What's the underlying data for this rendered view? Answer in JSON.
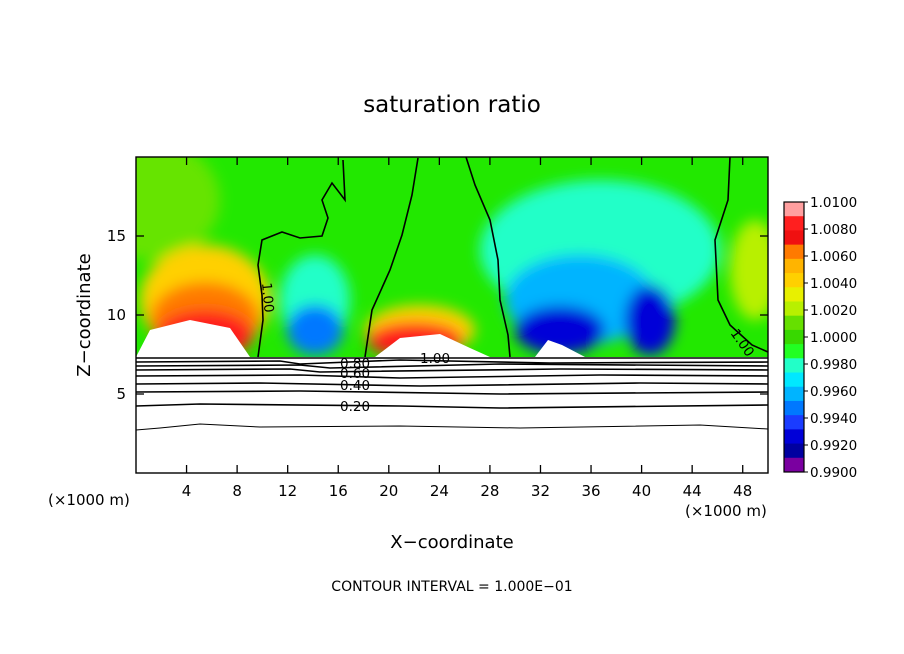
{
  "chart_data": {
    "type": "heatmap",
    "title": "saturation ratio",
    "xlabel": "X−coordinate",
    "ylabel": "Z−coordinate",
    "x_unit": "(×1000 m)",
    "y_unit": "(×1000 m)",
    "xlim": [
      0,
      50
    ],
    "ylim": [
      0,
      20
    ],
    "xticks": [
      4,
      8,
      12,
      16,
      20,
      24,
      28,
      32,
      36,
      40,
      44,
      48
    ],
    "yticks": [
      5,
      10,
      15
    ],
    "footnote": "CONTOUR INTERVAL = 1.000E−01",
    "colorbar": {
      "labels": [
        "1.0100",
        "1.0080",
        "1.0060",
        "1.0040",
        "1.0020",
        "1.0000",
        "0.9980",
        "0.9960",
        "0.9940",
        "0.9920",
        "0.9900"
      ],
      "colors": [
        "#ff9f9f",
        "#ff1f1f",
        "#f01010",
        "#ff7a00",
        "#ffb400",
        "#ffd000",
        "#e8f000",
        "#b8f000",
        "#66e000",
        "#38d800",
        "#22ff22",
        "#22ffc8",
        "#00e8ff",
        "#00b4ff",
        "#0078ff",
        "#1a3cff",
        "#0000d8",
        "#0000a0",
        "#7a00a0"
      ]
    },
    "contour_labels": [
      "1.00",
      "1.00",
      "1.00",
      "0.80",
      "0.60",
      "0.40",
      "0.20"
    ],
    "contour_levels": [
      0.2,
      0.4,
      0.6,
      0.8,
      1.0
    ]
  }
}
